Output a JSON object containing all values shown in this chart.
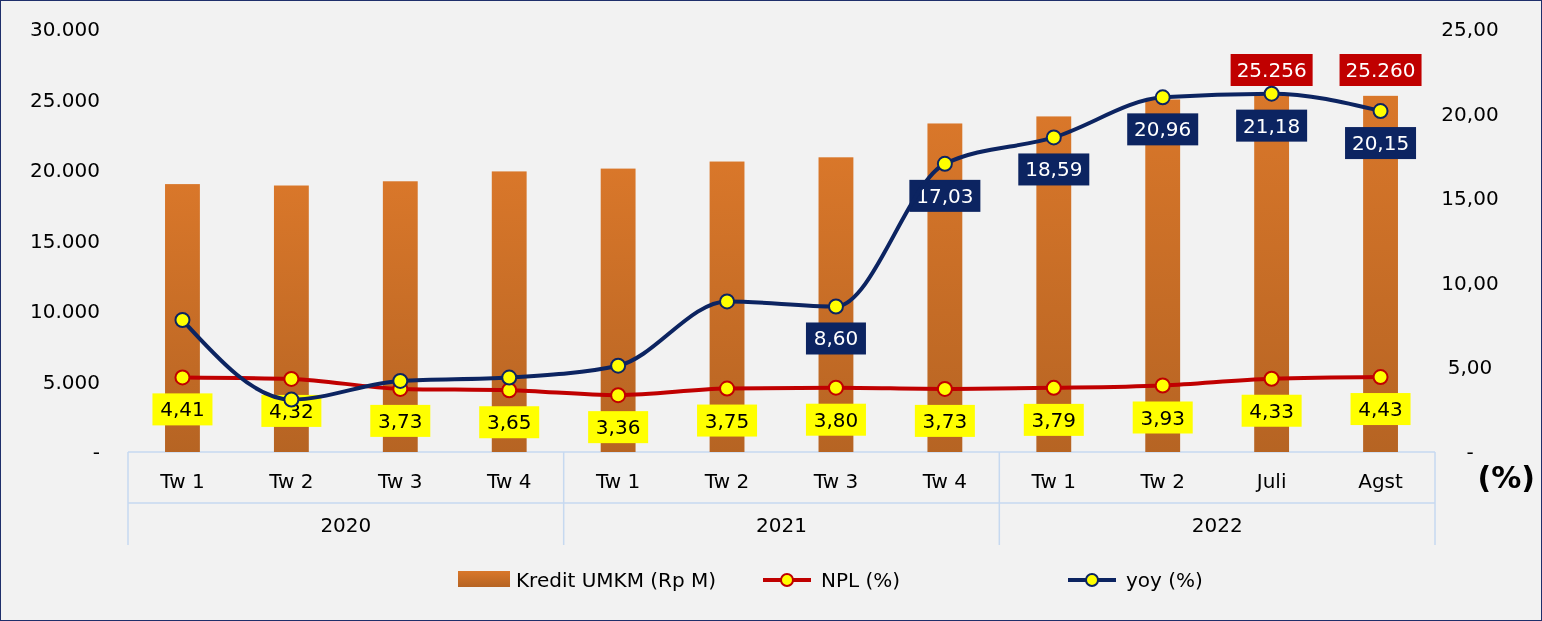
{
  "chart_data": {
    "type": "bar",
    "y2label": "(%)",
    "categories": [
      "Tw 1",
      "Tw 2",
      "Tw 3",
      "Tw 4",
      "Tw 1",
      "Tw 2",
      "Tw 3",
      "Tw 4",
      "Tw 1",
      "Tw 2",
      "Juli",
      "Agst"
    ],
    "annotations": [
      "2020",
      "2021",
      "2022"
    ],
    "series": [
      {
        "name": "Kredit UMKM (Rp M)",
        "color": "#d9772a",
        "values": [
          19000,
          18900,
          19200,
          19900,
          20100,
          20600,
          20900,
          23300,
          23800,
          25000,
          25256,
          25260
        ],
        "value_labels": [
          null,
          null,
          null,
          null,
          null,
          null,
          null,
          null,
          null,
          null,
          "25.256",
          "25.260"
        ]
      },
      {
        "name": "NPL (%)",
        "type": "line",
        "axis": "y2",
        "color": "#c00000",
        "values": [
          4.41,
          4.32,
          3.73,
          3.65,
          3.36,
          3.75,
          3.8,
          3.73,
          3.79,
          3.93,
          4.33,
          4.43
        ],
        "value_labels": [
          "4,41",
          "4,32",
          "3,73",
          "3,65",
          "3,36",
          "3,75",
          "3,80",
          "3,73",
          "3,79",
          "3,93",
          "4,33",
          "4,43"
        ]
      },
      {
        "name": "yoy (%)",
        "type": "line",
        "axis": "y2",
        "color": "#0c2461",
        "values": [
          7.8,
          3.1,
          4.2,
          4.4,
          5.1,
          8.9,
          8.6,
          17.03,
          18.59,
          20.96,
          21.18,
          20.15
        ],
        "value_labels": [
          null,
          null,
          null,
          null,
          null,
          null,
          "8,60",
          "17,03",
          "18,59",
          "20,96",
          "21,18",
          "20,15"
        ]
      }
    ],
    "ylim": [
      0,
      30000
    ],
    "yticks": [
      {
        "value": 0,
        "label": "-"
      },
      {
        "value": 5000,
        "label": "5.000"
      },
      {
        "value": 10000,
        "label": "10.000"
      },
      {
        "value": 15000,
        "label": "15.000"
      },
      {
        "value": 20000,
        "label": "20.000"
      },
      {
        "value": 25000,
        "label": "25.000"
      },
      {
        "value": 30000,
        "label": "30.000"
      }
    ],
    "y2lim": [
      0,
      25
    ],
    "y2ticks": [
      {
        "value": 0,
        "label": "-"
      },
      {
        "value": 5,
        "label": "5,00"
      },
      {
        "value": 10,
        "label": "10,00"
      },
      {
        "value": 15,
        "label": "15,00"
      },
      {
        "value": 20,
        "label": "20,00"
      },
      {
        "value": 25,
        "label": "25,00"
      }
    ],
    "legend": "bottom",
    "marker": "circle",
    "line_style": "solid",
    "grid": false
  }
}
